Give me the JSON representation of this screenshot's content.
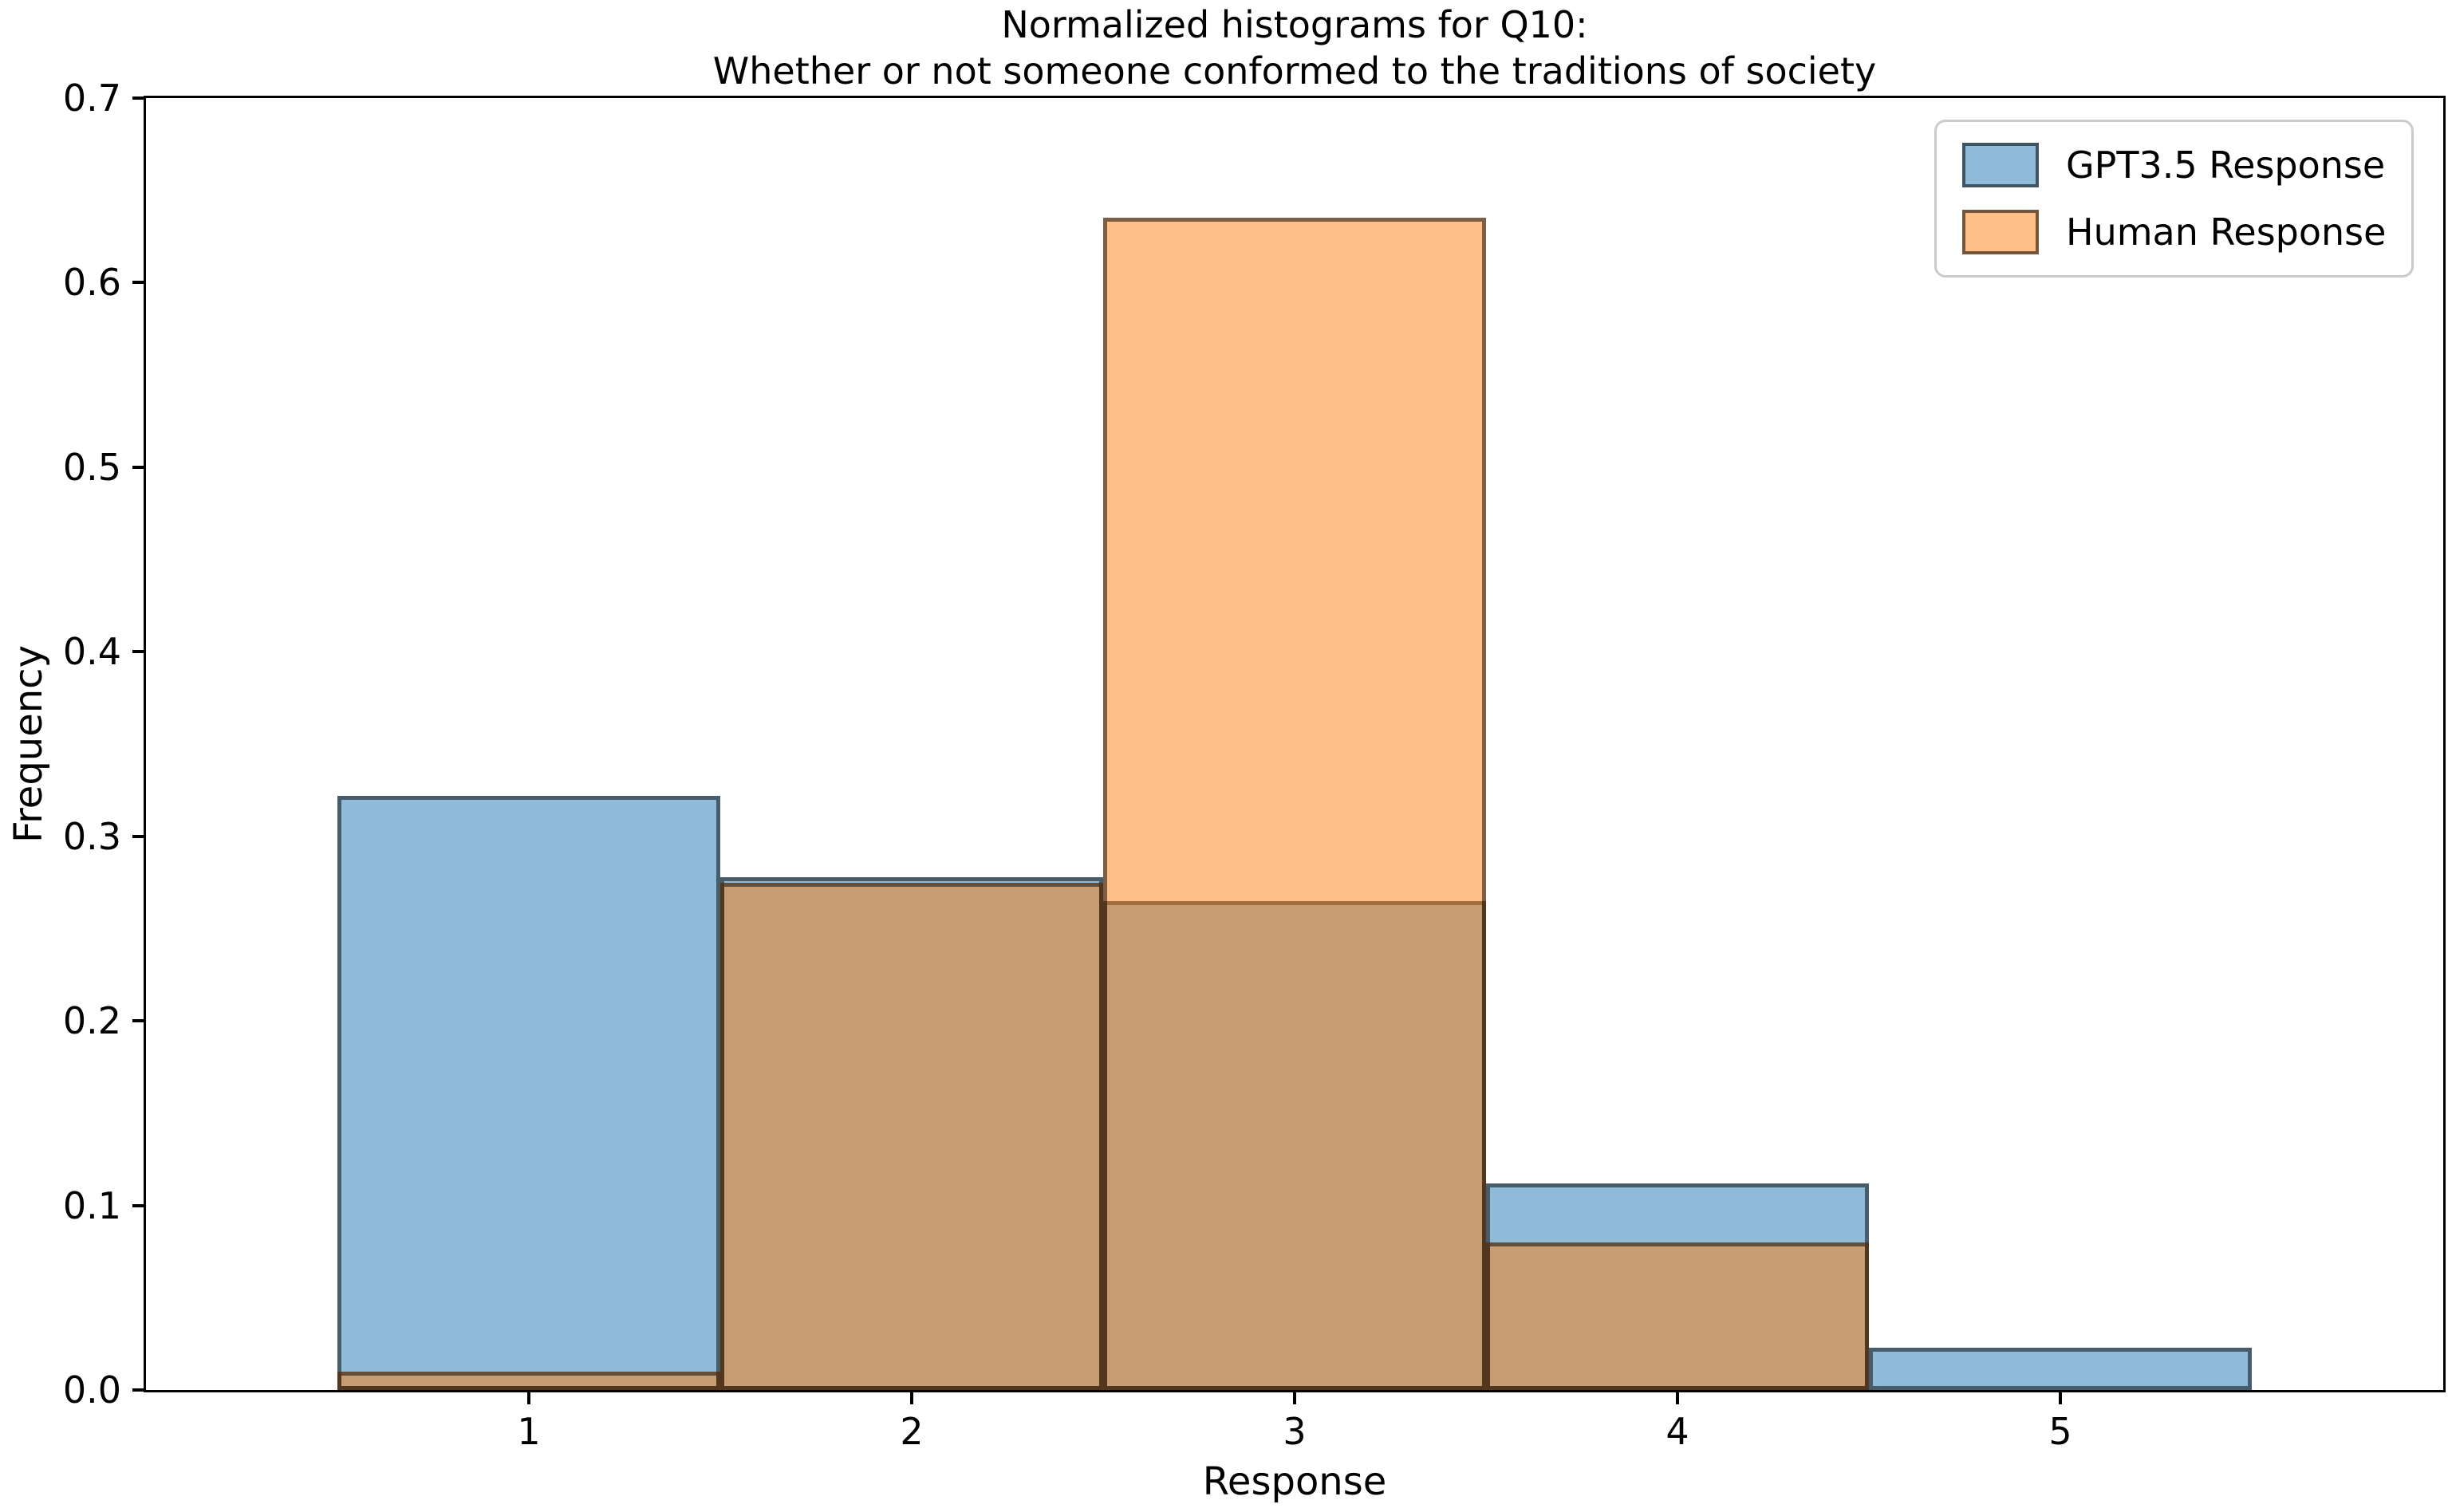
{
  "title": {
    "line1": "Normalized histograms for Q10:",
    "line2": "Whether or not someone conformed to the traditions of society"
  },
  "chart_data": {
    "type": "bar",
    "subtype": "overlapping-normalized-histogram",
    "title": "Normalized histograms for Q10:\nWhether or not someone conformed to the traditions of society",
    "title_lines": [
      "Normalized histograms for Q10:",
      "Whether or not someone conformed to the traditions of society"
    ],
    "xlabel": "Response",
    "ylabel": "Frequency",
    "categories": [
      1,
      2,
      3,
      4,
      5
    ],
    "bin_edges": [
      0.5,
      1.5,
      2.5,
      3.5,
      4.5,
      5.5
    ],
    "bar_width": 1.0,
    "series": [
      {
        "name": "GPT3.5 Response",
        "color": "#1f77b4",
        "alpha": 0.5,
        "values": [
          0.322,
          0.278,
          0.265,
          0.112,
          0.023
        ]
      },
      {
        "name": "Human Response",
        "color": "#ff7f0e",
        "alpha": 0.5,
        "values": [
          0.01,
          0.275,
          0.635,
          0.08,
          0.0
        ]
      }
    ],
    "xlim": [
      0,
      6
    ],
    "ylim": [
      0,
      0.7
    ],
    "xticks": [
      1,
      2,
      3,
      4,
      5
    ],
    "xtick_labels": [
      "1",
      "2",
      "3",
      "4",
      "5"
    ],
    "yticks": [
      0.0,
      0.1,
      0.2,
      0.3,
      0.4,
      0.5,
      0.6,
      0.7
    ],
    "ytick_labels": [
      "0.0",
      "0.1",
      "0.2",
      "0.3",
      "0.4",
      "0.5",
      "0.6",
      "0.7"
    ],
    "grid": false,
    "background": "#ffffff",
    "edge_color": "rgba(0,0,0,0.5)",
    "legend": {
      "position": "upper right",
      "entries": [
        "GPT3.5 Response",
        "Human Response"
      ]
    }
  }
}
